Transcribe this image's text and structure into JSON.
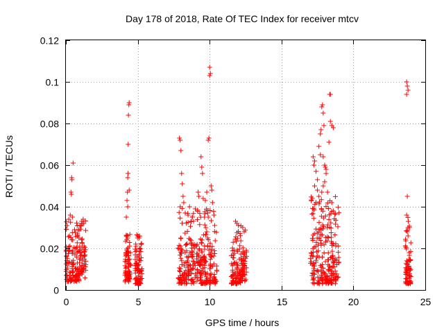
{
  "chart_data": {
    "type": "scatter",
    "title": "Day 178 of 2018, Rate Of TEC Index for receiver mtcv",
    "xlabel": "GPS time / hours",
    "ylabel": "ROTI / TECUs",
    "xlim": [
      0,
      25
    ],
    "ylim": [
      0,
      0.12
    ],
    "x_ticks": [
      0,
      5,
      10,
      15,
      20,
      25
    ],
    "y_ticks": [
      0,
      0.02,
      0.04,
      0.06,
      0.08,
      0.1,
      0.12
    ],
    "x_tick_labels": [
      "0",
      "5",
      "10",
      "15",
      "20",
      "25"
    ],
    "y_tick_labels": [
      "0",
      "0.02",
      "0.04",
      "0.06",
      "0.08",
      "0.1",
      "0.12"
    ],
    "grid": true,
    "grid_style": "dotted",
    "marker": "+",
    "marker_color": "#ff0000",
    "clusters": [
      {
        "x_range": [
          0.0,
          1.4
        ],
        "y_range": [
          0.004,
          0.034
        ],
        "core_max": 0.022
      },
      {
        "x_range": [
          4.1,
          4.5
        ],
        "y_range": [
          0.004,
          0.027
        ],
        "core_max": 0.018
      },
      {
        "x_range": [
          4.8,
          5.3
        ],
        "y_range": [
          0.003,
          0.027
        ],
        "core_max": 0.018
      },
      {
        "x_range": [
          7.8,
          10.5
        ],
        "y_range": [
          0.003,
          0.04
        ],
        "core_max": 0.022
      },
      {
        "x_range": [
          11.5,
          12.6
        ],
        "y_range": [
          0.003,
          0.032
        ],
        "core_max": 0.02
      },
      {
        "x_range": [
          17.0,
          19.0
        ],
        "y_range": [
          0.003,
          0.045
        ],
        "core_max": 0.03
      },
      {
        "x_range": [
          23.6,
          24.0
        ],
        "y_range": [
          0.003,
          0.035
        ],
        "core_max": 0.015
      }
    ],
    "points": [
      [
        0.2,
        0.034
      ],
      [
        0.25,
        0.026
      ],
      [
        0.3,
        0.036
      ],
      [
        0.35,
        0.047
      ],
      [
        0.38,
        0.046
      ],
      [
        0.4,
        0.054
      ],
      [
        0.42,
        0.053
      ],
      [
        0.5,
        0.061
      ],
      [
        0.45,
        0.035
      ],
      [
        0.6,
        0.029
      ],
      [
        0.8,
        0.027
      ],
      [
        1.1,
        0.033
      ],
      [
        1.2,
        0.034
      ],
      [
        1.25,
        0.032
      ],
      [
        4.2,
        0.035
      ],
      [
        4.25,
        0.043
      ],
      [
        4.28,
        0.047
      ],
      [
        4.3,
        0.054
      ],
      [
        4.32,
        0.056
      ],
      [
        4.33,
        0.07
      ],
      [
        4.35,
        0.084
      ],
      [
        4.38,
        0.089
      ],
      [
        4.4,
        0.09
      ],
      [
        4.3,
        0.04
      ],
      [
        4.4,
        0.048
      ],
      [
        5.0,
        0.026
      ],
      [
        5.1,
        0.025
      ],
      [
        7.9,
        0.073
      ],
      [
        7.95,
        0.072
      ],
      [
        8.0,
        0.067
      ],
      [
        8.05,
        0.056
      ],
      [
        8.1,
        0.051
      ],
      [
        8.15,
        0.045
      ],
      [
        8.2,
        0.042
      ],
      [
        8.3,
        0.037
      ],
      [
        8.5,
        0.036
      ],
      [
        8.6,
        0.04
      ],
      [
        8.8,
        0.035
      ],
      [
        9.0,
        0.039
      ],
      [
        9.2,
        0.047
      ],
      [
        9.25,
        0.045
      ],
      [
        9.4,
        0.064
      ],
      [
        9.45,
        0.059
      ],
      [
        9.5,
        0.056
      ],
      [
        9.55,
        0.044
      ],
      [
        9.7,
        0.043
      ],
      [
        9.8,
        0.047
      ],
      [
        9.9,
        0.072
      ],
      [
        9.95,
        0.073
      ],
      [
        10.0,
        0.107
      ],
      [
        10.05,
        0.104
      ],
      [
        10.0,
        0.103
      ],
      [
        10.1,
        0.05
      ],
      [
        10.15,
        0.048
      ],
      [
        10.2,
        0.042
      ],
      [
        10.3,
        0.036
      ],
      [
        10.35,
        0.031
      ],
      [
        9.9,
        0.035
      ],
      [
        9.8,
        0.028
      ],
      [
        8.7,
        0.033
      ],
      [
        11.8,
        0.033
      ],
      [
        12.0,
        0.031
      ],
      [
        12.3,
        0.03
      ],
      [
        12.4,
        0.028
      ],
      [
        17.2,
        0.064
      ],
      [
        17.25,
        0.06
      ],
      [
        17.3,
        0.062
      ],
      [
        17.4,
        0.057
      ],
      [
        17.5,
        0.053
      ],
      [
        17.6,
        0.069
      ],
      [
        17.7,
        0.075
      ],
      [
        17.75,
        0.077
      ],
      [
        17.8,
        0.088
      ],
      [
        17.85,
        0.089
      ],
      [
        17.9,
        0.085
      ],
      [
        17.95,
        0.079
      ],
      [
        18.0,
        0.06
      ],
      [
        18.05,
        0.059
      ],
      [
        18.1,
        0.056
      ],
      [
        18.3,
        0.071
      ],
      [
        18.4,
        0.081
      ],
      [
        18.5,
        0.079
      ],
      [
        18.6,
        0.078
      ],
      [
        18.35,
        0.094
      ],
      [
        18.4,
        0.094
      ],
      [
        17.3,
        0.05
      ],
      [
        17.5,
        0.048
      ],
      [
        17.6,
        0.045
      ],
      [
        17.8,
        0.047
      ],
      [
        17.9,
        0.05
      ],
      [
        18.0,
        0.052
      ],
      [
        18.2,
        0.047
      ],
      [
        18.5,
        0.042
      ],
      [
        18.6,
        0.038
      ],
      [
        17.7,
        0.065
      ],
      [
        17.9,
        0.064
      ],
      [
        18.1,
        0.058
      ],
      [
        17.4,
        0.042
      ],
      [
        23.7,
        0.1
      ],
      [
        23.75,
        0.098
      ],
      [
        23.8,
        0.096
      ],
      [
        23.7,
        0.094
      ],
      [
        23.75,
        0.045
      ],
      [
        23.7,
        0.036
      ],
      [
        23.8,
        0.03
      ],
      [
        23.75,
        0.028
      ],
      [
        23.8,
        0.026
      ]
    ]
  }
}
